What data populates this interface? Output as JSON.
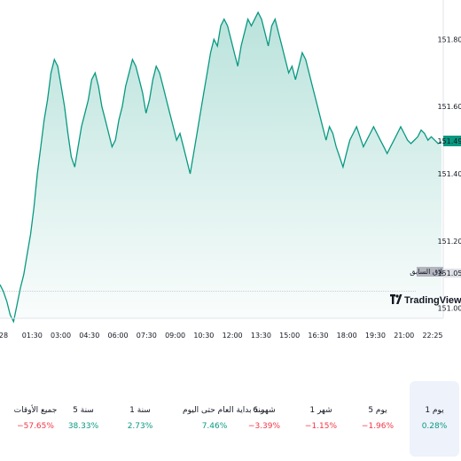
{
  "chart_data": {
    "type": "area",
    "x_ticks": [
      "28",
      "01:30",
      "03:00",
      "04:30",
      "06:00",
      "07:30",
      "09:00",
      "10:30",
      "12:00",
      "13:30",
      "15:00",
      "16:30",
      "18:00",
      "19:30",
      "21:00",
      "22:25"
    ],
    "y_ticks": [
      "151.800",
      "151.600",
      "151.400",
      "151.200",
      "151.000"
    ],
    "ylim": [
      150.97,
      151.88
    ],
    "previous_close": 151.05,
    "previous_close_label": "الإغلاق السابق",
    "last_price_label": "151.495",
    "prev_close_price_label": "151.050",
    "watermark": "TradingView",
    "line_color": "#089981",
    "series": [
      {
        "values": [
          151.07,
          151.05,
          151.02,
          150.98,
          150.96,
          151.01,
          151.06,
          151.1,
          151.16,
          151.22,
          151.3,
          151.4,
          151.48,
          151.56,
          151.62,
          151.7,
          151.74,
          151.72,
          151.66,
          151.6,
          151.52,
          151.45,
          151.42,
          151.48,
          151.54,
          151.58,
          151.62,
          151.68,
          151.7,
          151.66,
          151.6,
          151.56,
          151.52,
          151.48,
          151.5,
          151.56,
          151.6,
          151.66,
          151.7,
          151.74,
          151.72,
          151.68,
          151.64,
          151.58,
          151.62,
          151.68,
          151.72,
          151.7,
          151.66,
          151.62,
          151.58,
          151.54,
          151.5,
          151.52,
          151.48,
          151.44,
          151.4,
          151.46,
          151.52,
          151.58,
          151.64,
          151.7,
          151.76,
          151.8,
          151.78,
          151.84,
          151.86,
          151.84,
          151.8,
          151.76,
          151.72,
          151.78,
          151.82,
          151.86,
          151.84,
          151.86,
          151.88,
          151.86,
          151.82,
          151.78,
          151.84,
          151.86,
          151.82,
          151.78,
          151.74,
          151.7,
          151.72,
          151.68,
          151.72,
          151.76,
          151.74,
          151.7,
          151.66,
          151.62,
          151.58,
          151.54,
          151.5,
          151.54,
          151.52,
          151.48,
          151.45,
          151.42,
          151.46,
          151.5,
          151.52,
          151.54,
          151.51,
          151.48,
          151.5,
          151.52,
          151.54,
          151.52,
          151.5,
          151.48,
          151.46,
          151.48,
          151.5,
          151.52,
          151.54,
          151.52,
          151.5,
          151.49,
          151.5,
          151.51,
          151.53,
          151.52,
          151.5,
          151.51,
          151.5,
          151.49,
          151.495
        ],
        "color": "#089981"
      }
    ],
    "grid": false,
    "legend": "none"
  },
  "periods": [
    {
      "label": "1 يوم",
      "value": "0.28%",
      "sign": "pos",
      "active": true
    },
    {
      "label": "5 يوم",
      "value": "−1.96%",
      "sign": "neg",
      "active": false
    },
    {
      "label": "1 شهر",
      "value": "−1.15%",
      "sign": "neg",
      "active": false
    },
    {
      "label": "6 شهر",
      "value": "−3.39%",
      "sign": "neg",
      "active": false
    },
    {
      "label": "منذ بداية العام حتى اليوم",
      "value": "7.46%",
      "sign": "pos",
      "active": false
    },
    {
      "label": "1 سنة",
      "value": "2.73%",
      "sign": "pos",
      "active": false
    },
    {
      "label": "5 سنة",
      "value": "38.33%",
      "sign": "pos",
      "active": false
    },
    {
      "label": "جميع الأوقات",
      "value": "−57.65%",
      "sign": "neg",
      "active": false
    }
  ]
}
